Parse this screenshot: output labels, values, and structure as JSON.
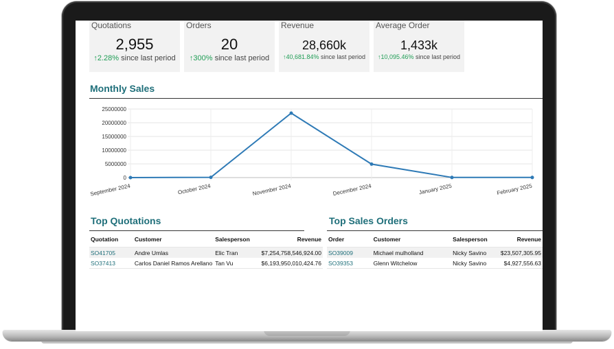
{
  "kpis": [
    {
      "label": "Quotations",
      "value": "2,955",
      "change": "2.28%",
      "suffix": "since last period"
    },
    {
      "label": "Orders",
      "value": "20",
      "change": "300%",
      "suffix": "since last period"
    },
    {
      "label": "Revenue",
      "value": "28,660k",
      "change": "40,681.84%",
      "suffix": "since last period"
    },
    {
      "label": "Average Order",
      "value": "1,433k",
      "change": "10,095.46%",
      "suffix": "since last period"
    }
  ],
  "monthly_sales": {
    "title": "Monthly Sales"
  },
  "chart_data": {
    "type": "line",
    "title": "Monthly Sales",
    "x": [
      "September 2024",
      "October 2024",
      "November 2024",
      "December 2024",
      "January 2025",
      "February 2025"
    ],
    "series": [
      {
        "values": [
          0,
          100000,
          23500000,
          4900000,
          50000,
          50000
        ]
      }
    ],
    "ylim": [
      0,
      25000000
    ],
    "yticks": [
      0,
      5000000,
      10000000,
      15000000,
      20000000,
      25000000
    ],
    "grid": true,
    "color": "#2e7ab6"
  },
  "top_quotations": {
    "title": "Top Quotations",
    "headers": [
      "Quotation",
      "Customer",
      "Salesperson",
      "Revenue"
    ],
    "rows": [
      {
        "id": "SO41705",
        "customer": "Andre Umlas",
        "salesperson": "Elic Tran",
        "revenue": "$7,254,758,546,924.00"
      },
      {
        "id": "SO37413",
        "customer": "Carlos Daniel Ramos Arellano",
        "salesperson": "Tan Vu",
        "revenue": "$6,193,950,010,424.76"
      }
    ]
  },
  "top_sales_orders": {
    "title": "Top Sales Orders",
    "headers": [
      "Order",
      "Customer",
      "Salesperson",
      "Revenue"
    ],
    "rows": [
      {
        "id": "SO39009",
        "customer": "Michael mulholland",
        "salesperson": "Nicky Savino",
        "revenue": "$23,507,305.95"
      },
      {
        "id": "SO39353",
        "customer": "Glenn Witchelow",
        "salesperson": "Nicky Savino",
        "revenue": "$4,927,556.63"
      }
    ]
  }
}
